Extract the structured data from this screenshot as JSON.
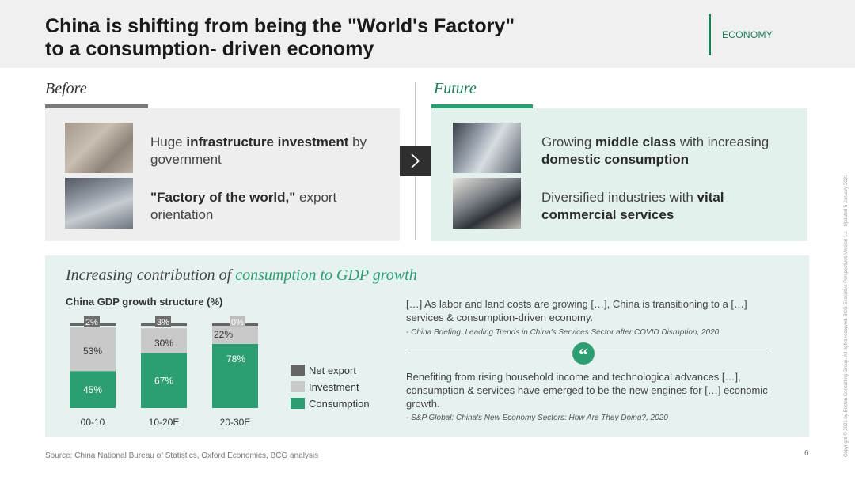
{
  "header": {
    "title_line1": "China is shifting from being the \"World's Factory\"",
    "title_line2": "to a consumption- driven economy",
    "tag": "ECONOMY"
  },
  "before": {
    "label": "Before",
    "items": [
      {
        "pre": "Huge ",
        "bold": "infrastructure investment",
        "post": " by government",
        "photo": "construction-site-photo"
      },
      {
        "pre": "",
        "bold": "\"Factory of the world,\"",
        "post": " export orientation",
        "photo": "factory-workers-photo"
      }
    ]
  },
  "future": {
    "label": "Future",
    "items": [
      {
        "pre": "Growing ",
        "bold1": "middle class",
        "mid": " with increasing ",
        "bold2": "domestic consumption",
        "post": "",
        "photo": "family-shopping-photo"
      },
      {
        "pre": "Diversified industries with ",
        "bold1": "vital commercial services",
        "mid": "",
        "bold2": "",
        "post": "",
        "photo": "business-meeting-photo"
      }
    ]
  },
  "bottom": {
    "heading_plain": "Increasing contribution of ",
    "heading_accent": "consumption to GDP growth",
    "quotes": [
      {
        "text": "[…] As labor and land costs are growing […], China is transitioning to a […] services & consumption-driven economy.",
        "source": "- China Briefing: Leading Trends in China's Services Sector after COVID Disruption, 2020"
      },
      {
        "text": "Benefiting from rising household income and technological advances […], consumption & services have emerged to be the new engines for […] economic growth.",
        "source": "- S&P Global: China's New Economy Sectors: How Are They Doing?, 2020"
      }
    ],
    "quote_icon": "“"
  },
  "chart_data": {
    "type": "bar",
    "stacked": true,
    "title": "China GDP growth structure (%)",
    "categories": [
      "00-10",
      "10-20E",
      "20-30E"
    ],
    "series": [
      {
        "name": "Consumption",
        "values": [
          45,
          67,
          78
        ],
        "labels": [
          "45%",
          "67%",
          "78%"
        ],
        "color": "#2c9e72"
      },
      {
        "name": "Investment",
        "values": [
          53,
          30,
          22
        ],
        "labels": [
          "53%",
          "30%",
          "22%"
        ],
        "color": "#c9c9c9"
      },
      {
        "name": "Net export",
        "values": [
          2,
          3,
          0
        ],
        "labels": [
          "2%",
          "3%",
          "0%"
        ],
        "color": "#666666"
      }
    ],
    "ylim": [
      0,
      100
    ]
  },
  "footer": {
    "source": "Source: China National Bureau of Statistics, Oxford Economics, BCG analysis",
    "page": "6",
    "copyright": "Copyright © 2021 by Boston Consulting Group. All rights reserved. BCG Executive Perspectives Version 1.1 · Updated 5 January 2021"
  },
  "colors": {
    "accent": "#1e7d57",
    "accent_light": "#2c9e72",
    "future_bg": "#e3f1ed",
    "panel_bg": "#e6f2ef"
  }
}
